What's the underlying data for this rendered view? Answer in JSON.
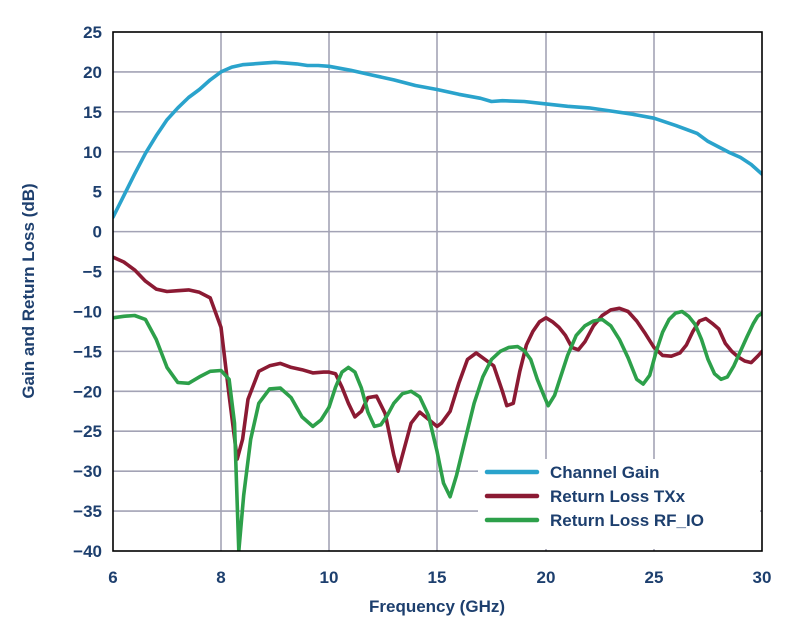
{
  "chart_data": {
    "type": "line",
    "title": "",
    "xlabel": "Frequency (GHz)",
    "ylabel": "Gain and Return Loss (dB)",
    "xlim": [
      6,
      30
    ],
    "ylim": [
      -40,
      25
    ],
    "x_ticks": [
      "6",
      "8",
      "10",
      "15",
      "20",
      "25",
      "30"
    ],
    "y_ticks": [
      "25",
      "20",
      "15",
      "10",
      "5",
      "0",
      "−5",
      "−10",
      "−15",
      "−20",
      "−25",
      "−30",
      "−35",
      "−40"
    ],
    "grid": true,
    "legend_position": "bottom-right",
    "colors": {
      "text": "#1d3f6e",
      "grid": "#a3a3b5",
      "axis": "#000000"
    },
    "series": [
      {
        "name": "Channel Gain",
        "color": "#2aa3cc",
        "points": [
          [
            6.0,
            1.8
          ],
          [
            6.2,
            4.5
          ],
          [
            6.4,
            7.2
          ],
          [
            6.6,
            9.8
          ],
          [
            6.8,
            12.0
          ],
          [
            7.0,
            14.0
          ],
          [
            7.2,
            15.5
          ],
          [
            7.4,
            16.8
          ],
          [
            7.6,
            17.8
          ],
          [
            7.8,
            19.0
          ],
          [
            8.0,
            20.0
          ],
          [
            8.2,
            20.6
          ],
          [
            8.4,
            20.9
          ],
          [
            8.6,
            21.0
          ],
          [
            8.8,
            21.1
          ],
          [
            9.0,
            21.2
          ],
          [
            9.2,
            21.1
          ],
          [
            9.4,
            21.0
          ],
          [
            9.6,
            20.8
          ],
          [
            9.8,
            20.8
          ],
          [
            10.0,
            20.7
          ],
          [
            11.0,
            20.2
          ],
          [
            12.0,
            19.6
          ],
          [
            13.0,
            19.0
          ],
          [
            14.0,
            18.3
          ],
          [
            15.0,
            17.8
          ],
          [
            16.0,
            17.2
          ],
          [
            17.0,
            16.7
          ],
          [
            17.5,
            16.3
          ],
          [
            18.0,
            16.4
          ],
          [
            19.0,
            16.3
          ],
          [
            20.0,
            16.0
          ],
          [
            21.0,
            15.7
          ],
          [
            22.0,
            15.5
          ],
          [
            23.0,
            15.1
          ],
          [
            24.0,
            14.7
          ],
          [
            25.0,
            14.2
          ],
          [
            26.0,
            13.3
          ],
          [
            27.0,
            12.3
          ],
          [
            27.5,
            11.3
          ],
          [
            28.0,
            10.6
          ],
          [
            28.5,
            9.9
          ],
          [
            29.0,
            9.3
          ],
          [
            29.5,
            8.4
          ],
          [
            30.0,
            7.2
          ]
        ]
      },
      {
        "name": "Return Loss TXx",
        "color": "#8b1a33",
        "points": [
          [
            6.0,
            -3.2
          ],
          [
            6.2,
            -3.8
          ],
          [
            6.4,
            -4.8
          ],
          [
            6.6,
            -6.2
          ],
          [
            6.8,
            -7.2
          ],
          [
            7.0,
            -7.5
          ],
          [
            7.2,
            -7.4
          ],
          [
            7.4,
            -7.3
          ],
          [
            7.6,
            -7.6
          ],
          [
            7.8,
            -8.3
          ],
          [
            8.0,
            -12.0
          ],
          [
            8.15,
            -20.5
          ],
          [
            8.3,
            -28.5
          ],
          [
            8.4,
            -26.0
          ],
          [
            8.5,
            -21.0
          ],
          [
            8.7,
            -17.5
          ],
          [
            8.9,
            -16.8
          ],
          [
            9.1,
            -16.5
          ],
          [
            9.3,
            -17.0
          ],
          [
            9.5,
            -17.3
          ],
          [
            9.7,
            -17.7
          ],
          [
            9.9,
            -17.6
          ],
          [
            10.0,
            -17.6
          ],
          [
            10.3,
            -17.8
          ],
          [
            10.6,
            -19.5
          ],
          [
            10.9,
            -21.5
          ],
          [
            11.2,
            -23.2
          ],
          [
            11.5,
            -22.5
          ],
          [
            11.8,
            -20.8
          ],
          [
            12.2,
            -20.6
          ],
          [
            12.6,
            -22.8
          ],
          [
            13.0,
            -28.0
          ],
          [
            13.2,
            -30.0
          ],
          [
            13.5,
            -27.0
          ],
          [
            13.8,
            -24.0
          ],
          [
            14.2,
            -22.6
          ],
          [
            14.6,
            -23.5
          ],
          [
            15.0,
            -24.4
          ],
          [
            15.2,
            -24.0
          ],
          [
            15.6,
            -22.5
          ],
          [
            16.0,
            -19.0
          ],
          [
            16.4,
            -16.0
          ],
          [
            16.8,
            -15.2
          ],
          [
            17.2,
            -16.0
          ],
          [
            17.6,
            -16.8
          ],
          [
            18.0,
            -20.0
          ],
          [
            18.2,
            -21.8
          ],
          [
            18.5,
            -21.5
          ],
          [
            18.8,
            -17.5
          ],
          [
            19.1,
            -14.2
          ],
          [
            19.4,
            -12.5
          ],
          [
            19.7,
            -11.3
          ],
          [
            20.0,
            -10.8
          ],
          [
            20.3,
            -11.3
          ],
          [
            20.6,
            -12.0
          ],
          [
            20.9,
            -13.0
          ],
          [
            21.2,
            -14.5
          ],
          [
            21.5,
            -14.8
          ],
          [
            21.8,
            -13.8
          ],
          [
            22.2,
            -11.8
          ],
          [
            22.6,
            -10.5
          ],
          [
            23.0,
            -9.8
          ],
          [
            23.4,
            -9.6
          ],
          [
            23.8,
            -10.0
          ],
          [
            24.2,
            -11.2
          ],
          [
            24.6,
            -12.8
          ],
          [
            25.0,
            -14.5
          ],
          [
            25.4,
            -15.5
          ],
          [
            25.8,
            -15.6
          ],
          [
            26.2,
            -15.2
          ],
          [
            26.5,
            -14.2
          ],
          [
            26.8,
            -12.5
          ],
          [
            27.1,
            -11.2
          ],
          [
            27.4,
            -10.9
          ],
          [
            27.7,
            -11.5
          ],
          [
            28.0,
            -12.2
          ],
          [
            28.3,
            -14.0
          ],
          [
            28.6,
            -15.0
          ],
          [
            28.9,
            -15.7
          ],
          [
            29.2,
            -16.2
          ],
          [
            29.5,
            -16.4
          ],
          [
            29.8,
            -15.6
          ],
          [
            30.0,
            -15.0
          ]
        ]
      },
      {
        "name": "Return Loss RF_IO",
        "color": "#2da04a",
        "points": [
          [
            6.0,
            -10.8
          ],
          [
            6.2,
            -10.6
          ],
          [
            6.4,
            -10.5
          ],
          [
            6.6,
            -11.0
          ],
          [
            6.8,
            -13.5
          ],
          [
            7.0,
            -17.0
          ],
          [
            7.2,
            -18.9
          ],
          [
            7.4,
            -19.0
          ],
          [
            7.6,
            -18.2
          ],
          [
            7.8,
            -17.5
          ],
          [
            8.0,
            -17.4
          ],
          [
            8.15,
            -18.5
          ],
          [
            8.25,
            -24.0
          ],
          [
            8.33,
            -40.0
          ],
          [
            8.42,
            -33.0
          ],
          [
            8.55,
            -26.0
          ],
          [
            8.7,
            -21.5
          ],
          [
            8.9,
            -19.7
          ],
          [
            9.1,
            -19.6
          ],
          [
            9.3,
            -20.8
          ],
          [
            9.5,
            -23.2
          ],
          [
            9.7,
            -24.4
          ],
          [
            9.85,
            -23.6
          ],
          [
            10.0,
            -22.0
          ],
          [
            10.3,
            -19.5
          ],
          [
            10.6,
            -17.6
          ],
          [
            10.9,
            -17.0
          ],
          [
            11.2,
            -17.6
          ],
          [
            11.5,
            -19.6
          ],
          [
            11.8,
            -22.6
          ],
          [
            12.1,
            -24.4
          ],
          [
            12.4,
            -24.2
          ],
          [
            12.7,
            -23.0
          ],
          [
            13.0,
            -21.5
          ],
          [
            13.4,
            -20.3
          ],
          [
            13.8,
            -20.0
          ],
          [
            14.2,
            -20.7
          ],
          [
            14.6,
            -23.0
          ],
          [
            15.0,
            -27.5
          ],
          [
            15.3,
            -31.5
          ],
          [
            15.6,
            -33.2
          ],
          [
            15.9,
            -30.5
          ],
          [
            16.3,
            -26.0
          ],
          [
            16.7,
            -21.5
          ],
          [
            17.1,
            -18.2
          ],
          [
            17.5,
            -16.0
          ],
          [
            17.9,
            -15.0
          ],
          [
            18.3,
            -14.5
          ],
          [
            18.7,
            -14.4
          ],
          [
            19.0,
            -14.9
          ],
          [
            19.3,
            -16.0
          ],
          [
            19.6,
            -18.5
          ],
          [
            19.9,
            -20.5
          ],
          [
            20.1,
            -21.8
          ],
          [
            20.4,
            -20.5
          ],
          [
            20.7,
            -18.0
          ],
          [
            21.0,
            -15.5
          ],
          [
            21.4,
            -13.0
          ],
          [
            21.8,
            -11.8
          ],
          [
            22.2,
            -11.2
          ],
          [
            22.6,
            -11.0
          ],
          [
            23.0,
            -11.8
          ],
          [
            23.4,
            -13.5
          ],
          [
            23.8,
            -15.8
          ],
          [
            24.2,
            -18.5
          ],
          [
            24.5,
            -19.1
          ],
          [
            24.8,
            -18.0
          ],
          [
            25.1,
            -15.0
          ],
          [
            25.4,
            -12.6
          ],
          [
            25.7,
            -11.0
          ],
          [
            26.0,
            -10.2
          ],
          [
            26.3,
            -10.0
          ],
          [
            26.6,
            -10.6
          ],
          [
            26.9,
            -11.6
          ],
          [
            27.2,
            -13.5
          ],
          [
            27.5,
            -16.0
          ],
          [
            27.8,
            -17.8
          ],
          [
            28.1,
            -18.5
          ],
          [
            28.4,
            -18.2
          ],
          [
            28.7,
            -16.8
          ],
          [
            29.0,
            -15.0
          ],
          [
            29.3,
            -13.2
          ],
          [
            29.6,
            -11.5
          ],
          [
            29.8,
            -10.6
          ],
          [
            30.0,
            -10.2
          ]
        ]
      }
    ]
  }
}
